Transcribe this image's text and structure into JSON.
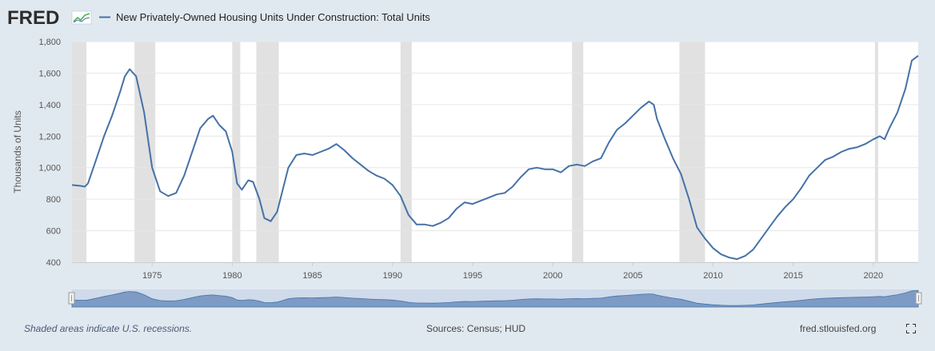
{
  "header": {
    "logo_text": "FRED",
    "series_title": "New Privately-Owned Housing Units Under Construction: Total Units"
  },
  "footer": {
    "recession_note": "Shaded areas indicate U.S. recessions.",
    "sources": "Sources: Census; HUD",
    "site": "fred.stlouisfed.org"
  },
  "colors": {
    "line": "#4572a7",
    "recession": "#e1e1e1",
    "background": "#e1e9f0",
    "plot_background": "#ffffff",
    "navigator_fill": "#a8bfdc"
  },
  "icons": [
    "fred-graph-icon",
    "fullscreen-icon"
  ],
  "chart_data": {
    "type": "line",
    "title": "New Privately-Owned Housing Units Under Construction: Total Units",
    "ylabel": "Thousands of Units",
    "xlim": [
      1970.0,
      2022.8
    ],
    "ylim": [
      400,
      1800
    ],
    "yticks": [
      400,
      600,
      800,
      1000,
      1200,
      1400,
      1600,
      1800
    ],
    "ytick_labels": [
      "400",
      "600",
      "800",
      "1,000",
      "1,200",
      "1,400",
      "1,600",
      "1,800"
    ],
    "xticks": [
      1975,
      1980,
      1985,
      1990,
      1995,
      2000,
      2005,
      2010,
      2015,
      2020
    ],
    "xtick_labels": [
      "1975",
      "1980",
      "1985",
      "1990",
      "1995",
      "2000",
      "2005",
      "2010",
      "2015",
      "2020"
    ],
    "grid": true,
    "legend": "top-left",
    "recessions": [
      [
        1969.9,
        1970.9
      ],
      [
        1973.9,
        1975.2
      ],
      [
        1980.0,
        1980.5
      ],
      [
        1981.5,
        1982.9
      ],
      [
        1990.5,
        1991.2
      ],
      [
        2001.2,
        2001.9
      ],
      [
        2007.9,
        2009.5
      ],
      [
        2020.1,
        2020.3
      ]
    ],
    "series": [
      {
        "name": "New Privately-Owned Housing Units Under Construction: Total Units",
        "x": [
          1970.0,
          1970.5,
          1970.8,
          1971.0,
          1971.5,
          1972.0,
          1972.5,
          1973.0,
          1973.3,
          1973.6,
          1974.0,
          1974.5,
          1975.0,
          1975.5,
          1976.0,
          1976.5,
          1977.0,
          1977.5,
          1978.0,
          1978.5,
          1978.8,
          1979.2,
          1979.6,
          1980.0,
          1980.3,
          1980.6,
          1981.0,
          1981.3,
          1981.7,
          1982.0,
          1982.4,
          1982.8,
          1983.0,
          1983.5,
          1984.0,
          1984.5,
          1985.0,
          1985.5,
          1986.0,
          1986.5,
          1987.0,
          1987.5,
          1988.0,
          1988.5,
          1989.0,
          1989.5,
          1990.0,
          1990.5,
          1991.0,
          1991.5,
          1992.0,
          1992.5,
          1993.0,
          1993.5,
          1994.0,
          1994.5,
          1995.0,
          1995.5,
          1996.0,
          1996.5,
          1997.0,
          1997.5,
          1998.0,
          1998.5,
          1999.0,
          1999.5,
          2000.0,
          2000.5,
          2001.0,
          2001.5,
          2002.0,
          2002.5,
          2003.0,
          2003.5,
          2004.0,
          2004.5,
          2005.0,
          2005.5,
          2006.0,
          2006.3,
          2006.5,
          2007.0,
          2007.5,
          2008.0,
          2008.5,
          2009.0,
          2009.5,
          2010.0,
          2010.5,
          2011.0,
          2011.5,
          2012.0,
          2012.5,
          2013.0,
          2013.5,
          2014.0,
          2014.5,
          2015.0,
          2015.5,
          2016.0,
          2016.5,
          2017.0,
          2017.5,
          2018.0,
          2018.5,
          2019.0,
          2019.5,
          2020.0,
          2020.4,
          2020.7,
          2021.0,
          2021.5,
          2022.0,
          2022.4,
          2022.8
        ],
        "y": [
          890,
          885,
          880,
          900,
          1050,
          1200,
          1330,
          1480,
          1580,
          1625,
          1580,
          1350,
          1000,
          850,
          820,
          840,
          950,
          1100,
          1250,
          1310,
          1330,
          1270,
          1230,
          1100,
          900,
          860,
          920,
          910,
          800,
          680,
          660,
          720,
          800,
          1000,
          1080,
          1090,
          1080,
          1100,
          1120,
          1150,
          1110,
          1060,
          1020,
          980,
          950,
          930,
          890,
          820,
          700,
          640,
          640,
          630,
          650,
          680,
          740,
          780,
          770,
          790,
          810,
          830,
          840,
          880,
          940,
          990,
          1000,
          990,
          990,
          970,
          1010,
          1020,
          1010,
          1040,
          1060,
          1160,
          1240,
          1280,
          1330,
          1380,
          1420,
          1400,
          1310,
          1180,
          1060,
          960,
          800,
          620,
          550,
          490,
          450,
          430,
          420,
          440,
          480,
          550,
          620,
          690,
          750,
          800,
          870,
          950,
          1000,
          1050,
          1070,
          1100,
          1120,
          1130,
          1150,
          1180,
          1200,
          1180,
          1250,
          1350,
          1500,
          1680,
          1710
        ]
      }
    ]
  }
}
